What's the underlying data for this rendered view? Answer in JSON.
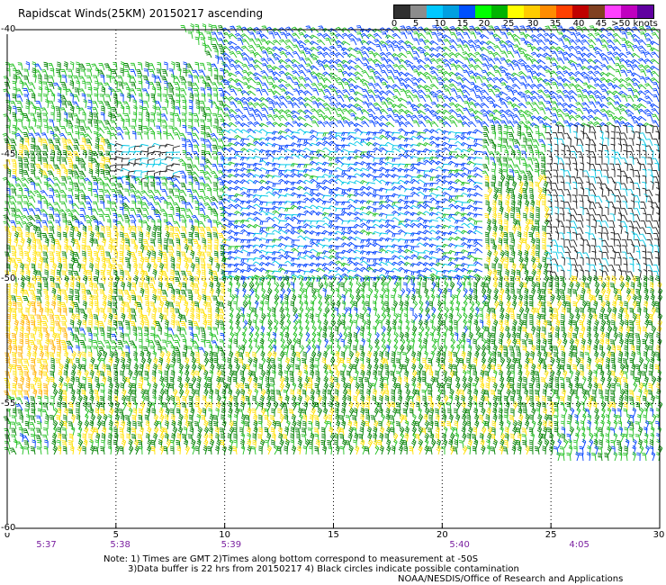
{
  "title": "Rapidscat Winds(25KM) 20150217 ascending",
  "legend": {
    "labels": [
      "0",
      "5",
      "10",
      "15",
      "20",
      "25",
      "30",
      "35",
      "40",
      "45",
      ">50 knots"
    ],
    "colors": [
      "#303030",
      "#8c8c8c",
      "#00c8ff",
      "#00a0e0",
      "#0050ff",
      "#00ff00",
      "#00b400",
      "#ffff00",
      "#ffcc00",
      "#ff8c00",
      "#ff4000",
      "#c00000",
      "#804020",
      "#ff40ff",
      "#c000c0",
      "#6000a0"
    ]
  },
  "x_axis": {
    "ticks": [
      "0",
      "5",
      "10",
      "15",
      "20",
      "25",
      "30"
    ],
    "range": [
      0,
      30
    ]
  },
  "y_axis": {
    "ticks": [
      "-40",
      "-45",
      "-50",
      "-55",
      "-60"
    ],
    "range": [
      -60,
      -40
    ]
  },
  "time_labels": [
    {
      "text": "5:37",
      "lon": 1.8
    },
    {
      "text": "5:38",
      "lon": 5.2
    },
    {
      "text": "5:39",
      "lon": 10.3
    },
    {
      "text": "5:40",
      "lon": 20.8
    },
    {
      "text": "4:05",
      "lon": 26.3
    }
  ],
  "notes": {
    "line1": "Note: 1) Times are GMT 2)Times along bottom correspond to measurement at -50S",
    "line2": "3)Data buffer is 22 hrs from 20150217 4) Black circles indicate possible contamination",
    "credit": "NOAA/NESDIS/Office of Research and Applications"
  },
  "swath_regions": [
    {
      "name": "swath-a",
      "lon": [
        0,
        30
      ],
      "lat": [
        -57.2,
        -40
      ]
    },
    {
      "name": "swath-b",
      "lon": [
        25.2,
        30
      ],
      "lat": [
        -57.3,
        -55.3
      ]
    }
  ],
  "wind_field": [
    {
      "lon": [
        10,
        30
      ],
      "lat": [
        -44,
        -40
      ],
      "speed_kt": 14,
      "dir": 230
    },
    {
      "lon": [
        10,
        22
      ],
      "lat": [
        -50,
        -44
      ],
      "speed_kt": 12,
      "dir": 200
    },
    {
      "lon": [
        0,
        10
      ],
      "lat": [
        -48,
        -44
      ],
      "speed_kt": 17,
      "dir": 250
    },
    {
      "lon": [
        4,
        8
      ],
      "lat": [
        -46,
        -44.5
      ],
      "speed_kt": 5,
      "dir": 180
    },
    {
      "lon": [
        0,
        5
      ],
      "lat": [
        -46,
        -44.5
      ],
      "speed_kt": 24,
      "dir": 260
    },
    {
      "lon": [
        0,
        10
      ],
      "lat": [
        -52,
        -48
      ],
      "speed_kt": 26,
      "dir": 270
    },
    {
      "lon": [
        0,
        3
      ],
      "lat": [
        -55,
        -51
      ],
      "speed_kt": 30,
      "dir": 270
    },
    {
      "lon": [
        10,
        22
      ],
      "lat": [
        -54,
        -50
      ],
      "speed_kt": 18,
      "dir": 290
    },
    {
      "lon": [
        22,
        30
      ],
      "lat": [
        -53,
        -46
      ],
      "speed_kt": 24,
      "dir": 280
    },
    {
      "lon": [
        25,
        30
      ],
      "lat": [
        -50,
        -44
      ],
      "speed_kt": 3,
      "dir": 260
    },
    {
      "lon": [
        2,
        30
      ],
      "lat": [
        -57.2,
        -53
      ],
      "speed_kt": 23,
      "dir": 280
    },
    {
      "lon": [
        25.2,
        30
      ],
      "lat": [
        -57.3,
        -55.3
      ],
      "speed_kt": 17,
      "dir": 280
    }
  ]
}
